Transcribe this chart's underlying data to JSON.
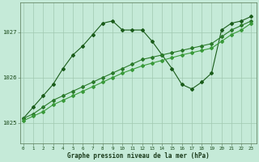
{
  "xlabel": "Graphe pression niveau de la mer (hPa)",
  "bg_color": "#c5ead8",
  "grid_color": "#a0c8b0",
  "line_color_dark": "#1a5c1a",
  "line_color_mid": "#2a7a2a",
  "line_color_light": "#3a9a3a",
  "x_ticks": [
    0,
    1,
    2,
    3,
    4,
    5,
    6,
    7,
    8,
    9,
    10,
    11,
    12,
    13,
    14,
    15,
    16,
    17,
    18,
    19,
    20,
    21,
    22,
    23
  ],
  "y_ticks": [
    1025,
    1026,
    1027
  ],
  "ylim": [
    1024.55,
    1027.65
  ],
  "xlim": [
    -0.3,
    23.5
  ],
  "series_peak": [
    1025.1,
    1025.35,
    1025.6,
    1025.85,
    1026.2,
    1026.5,
    1026.7,
    1026.95,
    1027.2,
    1027.25,
    1027.05,
    1027.05,
    1027.05,
    1026.8,
    1026.5,
    1026.2,
    1025.85,
    1025.75,
    1025.9,
    1026.1,
    1027.05,
    1027.2,
    1027.25,
    1027.35
  ],
  "series_linear1": [
    1025.1,
    1025.2,
    1025.35,
    1025.5,
    1025.6,
    1025.7,
    1025.8,
    1025.9,
    1026.0,
    1026.1,
    1026.2,
    1026.3,
    1026.4,
    1026.45,
    1026.5,
    1026.55,
    1026.6,
    1026.65,
    1026.7,
    1026.75,
    1026.9,
    1027.05,
    1027.15,
    1027.25
  ],
  "series_linear2": [
    1025.05,
    1025.15,
    1025.25,
    1025.4,
    1025.5,
    1025.6,
    1025.7,
    1025.8,
    1025.9,
    1026.0,
    1026.1,
    1026.18,
    1026.26,
    1026.32,
    1026.38,
    1026.44,
    1026.5,
    1026.55,
    1026.6,
    1026.65,
    1026.8,
    1026.95,
    1027.05,
    1027.2
  ]
}
